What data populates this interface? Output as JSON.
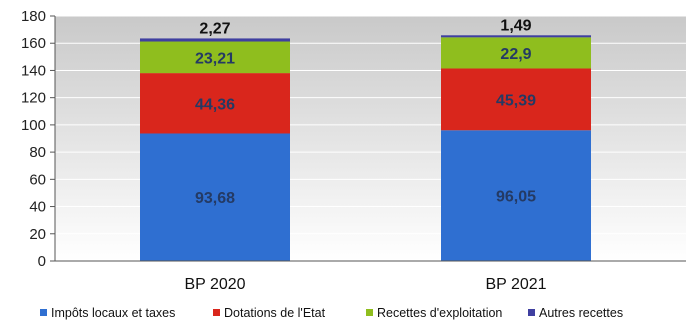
{
  "chart_data": {
    "type": "bar",
    "stacked": true,
    "categories": [
      "BP 2020",
      "BP 2021"
    ],
    "series": [
      {
        "name": "Impôts locaux et taxes",
        "values": [
          93.68,
          96.05
        ],
        "labels": [
          "93,68",
          "96,05"
        ],
        "color": "#2f6fd1"
      },
      {
        "name": "Dotations de l'Etat",
        "values": [
          44.36,
          45.39
        ],
        "labels": [
          "44,36",
          "45,39"
        ],
        "color": "#d9261c"
      },
      {
        "name": "Recettes d'exploitation",
        "values": [
          23.21,
          22.9
        ],
        "labels": [
          "23,21",
          "22,9"
        ],
        "color": "#8fbe1e"
      },
      {
        "name": "Autres recettes",
        "values": [
          2.27,
          1.49
        ],
        "labels": [
          "2,27",
          "1,49"
        ],
        "color": "#3f3fa0"
      }
    ],
    "ylim": [
      0,
      180
    ],
    "yticks": [
      0,
      20,
      40,
      60,
      80,
      100,
      120,
      140,
      160,
      180
    ],
    "title": "",
    "xlabel": "",
    "ylabel": "",
    "grid": true,
    "legend_position": "bottom"
  }
}
